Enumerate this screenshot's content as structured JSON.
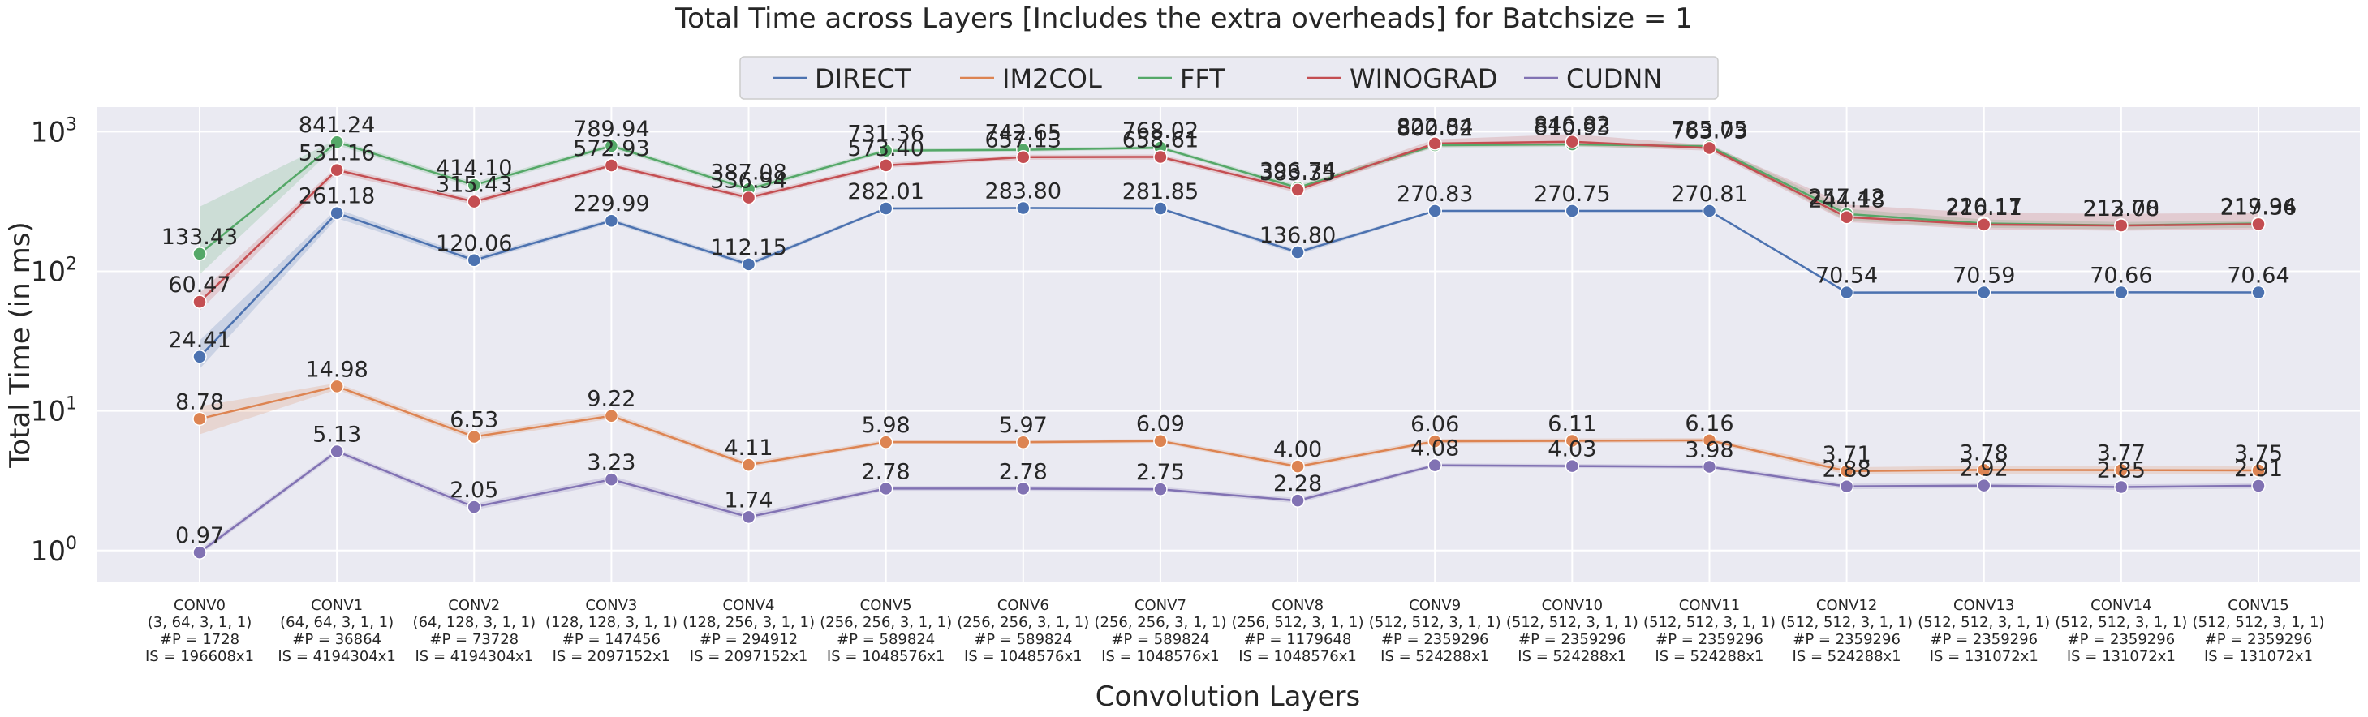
{
  "chart_data": {
    "type": "line",
    "title": "Total Time across Layers [Includes the extra overheads]  for Batchsize = 1",
    "xlabel": "Convolution Layers",
    "ylabel": "Total Time (in ms)",
    "yscale": "log",
    "ylim": [
      0.6,
      1500
    ],
    "y_ticks": [
      {
        "value": 1,
        "base": "10",
        "exp": "0"
      },
      {
        "value": 10,
        "base": "10",
        "exp": "1"
      },
      {
        "value": 100,
        "base": "10",
        "exp": "2"
      },
      {
        "value": 1000,
        "base": "10",
        "exp": "3"
      }
    ],
    "grid": true,
    "legend_position": "top-center",
    "categories": [
      {
        "name": "CONV0",
        "shape": "(3, 64, 3, 1, 1)",
        "params": "#P = 1728",
        "input": "IS = 196608x1"
      },
      {
        "name": "CONV1",
        "shape": "(64, 64, 3, 1, 1)",
        "params": "#P = 36864",
        "input": "IS = 4194304x1"
      },
      {
        "name": "CONV2",
        "shape": "(64, 128, 3, 1, 1)",
        "params": "#P = 73728",
        "input": "IS = 4194304x1"
      },
      {
        "name": "CONV3",
        "shape": "(128, 128, 3, 1, 1)",
        "params": "#P = 147456",
        "input": "IS = 2097152x1"
      },
      {
        "name": "CONV4",
        "shape": "(128, 256, 3, 1, 1)",
        "params": "#P = 294912",
        "input": "IS = 2097152x1"
      },
      {
        "name": "CONV5",
        "shape": "(256, 256, 3, 1, 1)",
        "params": "#P = 589824",
        "input": "IS = 1048576x1"
      },
      {
        "name": "CONV6",
        "shape": "(256, 256, 3, 1, 1)",
        "params": "#P = 589824",
        "input": "IS = 1048576x1"
      },
      {
        "name": "CONV7",
        "shape": "(256, 256, 3, 1, 1)",
        "params": "#P = 589824",
        "input": "IS = 1048576x1"
      },
      {
        "name": "CONV8",
        "shape": "(256, 512, 3, 1, 1)",
        "params": "#P = 1179648",
        "input": "IS = 1048576x1"
      },
      {
        "name": "CONV9",
        "shape": "(512, 512, 3, 1, 1)",
        "params": "#P = 2359296",
        "input": "IS = 524288x1"
      },
      {
        "name": "CONV10",
        "shape": "(512, 512, 3, 1, 1)",
        "params": "#P = 2359296",
        "input": "IS = 524288x1"
      },
      {
        "name": "CONV11",
        "shape": "(512, 512, 3, 1, 1)",
        "params": "#P = 2359296",
        "input": "IS = 524288x1"
      },
      {
        "name": "CONV12",
        "shape": "(512, 512, 3, 1, 1)",
        "params": "#P = 2359296",
        "input": "IS = 524288x1"
      },
      {
        "name": "CONV13",
        "shape": "(512, 512, 3, 1, 1)",
        "params": "#P = 2359296",
        "input": "IS = 131072x1"
      },
      {
        "name": "CONV14",
        "shape": "(512, 512, 3, 1, 1)",
        "params": "#P = 2359296",
        "input": "IS = 131072x1"
      },
      {
        "name": "CONV15",
        "shape": "(512, 512, 3, 1, 1)",
        "params": "#P = 2359296",
        "input": "IS = 131072x1"
      }
    ],
    "series": [
      {
        "name": "DIRECT",
        "color": "#4c72b0",
        "values": [
          24.41,
          261.18,
          120.06,
          229.99,
          112.15,
          282.01,
          283.8,
          281.85,
          136.8,
          270.83,
          270.75,
          270.81,
          70.54,
          70.59,
          70.66,
          70.64
        ],
        "labels": [
          "24.41",
          "261.18",
          "120.06",
          "229.99",
          "112.15",
          "282.01",
          "283.80",
          "281.85",
          "136.80",
          "270.83",
          "270.75",
          "270.81",
          "70.54",
          "70.59",
          "70.66",
          "70.64"
        ],
        "band_low": [
          20,
          240,
          115,
          222,
          108,
          276,
          279,
          277,
          131,
          266,
          266,
          266,
          69.5,
          69.6,
          69.7,
          69.7
        ],
        "band_high": [
          32,
          280,
          126,
          238,
          117,
          288,
          289,
          287,
          142,
          276,
          276,
          276,
          71.5,
          71.5,
          71.6,
          71.6
        ]
      },
      {
        "name": "IM2COL",
        "color": "#dd8452",
        "values": [
          8.78,
          14.98,
          6.53,
          9.22,
          4.11,
          5.98,
          5.97,
          6.09,
          4.0,
          6.06,
          6.11,
          6.16,
          3.71,
          3.78,
          3.77,
          3.75
        ],
        "labels": [
          "8.78",
          "14.98",
          "6.53",
          "9.22",
          "4.11",
          "5.98",
          "5.97",
          "6.09",
          "4.00",
          "6.06",
          "6.11",
          "6.16",
          "3.71",
          "3.78",
          "3.77",
          "3.75"
        ],
        "band_low": [
          6.8,
          14.2,
          6.2,
          8.8,
          3.95,
          5.8,
          5.8,
          5.9,
          3.85,
          5.85,
          5.9,
          5.95,
          3.5,
          3.55,
          3.55,
          3.55
        ],
        "band_high": [
          10.8,
          15.8,
          6.9,
          9.7,
          4.3,
          6.2,
          6.15,
          6.3,
          4.2,
          6.3,
          6.35,
          6.4,
          3.95,
          4.05,
          4.05,
          4.0
        ]
      },
      {
        "name": "FFT",
        "color": "#55a868",
        "values": [
          133.43,
          841.24,
          414.1,
          789.94,
          387.08,
          731.36,
          742.65,
          768.02,
          396.74,
          800.02,
          810.93,
          785.05,
          257.42,
          220.17,
          213.08,
          219.94
        ],
        "labels": [
          "133.43",
          "841.24",
          "414.10",
          "789.94",
          "387.08",
          "731.36",
          "742.65",
          "768.02",
          "396.74",
          "800.02",
          "810.93",
          "785.05",
          "257.42",
          "220.17",
          "213.08",
          "219.94"
        ],
        "band_low": [
          95,
          800,
          395,
          760,
          370,
          710,
          720,
          745,
          380,
          770,
          780,
          755,
          230,
          205,
          200,
          205
        ],
        "band_high": [
          290,
          880,
          435,
          820,
          405,
          755,
          765,
          790,
          415,
          830,
          840,
          815,
          280,
          235,
          225,
          232
        ]
      },
      {
        "name": "WINOGRAD",
        "color": "#c44e52",
        "values": [
          60.47,
          531.16,
          315.43,
          572.93,
          336.94,
          573.4,
          657.13,
          658.61,
          383.35,
          822.84,
          846.82,
          763.73,
          244.18,
          216.11,
          212.7,
          217.36
        ],
        "labels": [
          "60.47",
          "531.16",
          "315.43",
          "572.93",
          "336.94",
          "573.40",
          "657.13",
          "658.61",
          "383.35",
          "822.84",
          "846.82",
          "763.73",
          "244.18",
          "216.11",
          "212.70",
          "217.36"
        ],
        "band_low": [
          52,
          500,
          300,
          550,
          322,
          550,
          630,
          632,
          365,
          780,
          790,
          730,
          225,
          200,
          195,
          200
        ],
        "band_high": [
          70,
          560,
          330,
          600,
          352,
          598,
          684,
          686,
          402,
          880,
          960,
          800,
          300,
          262,
          258,
          262
        ]
      },
      {
        "name": "CUDNN",
        "color": "#8172b3",
        "values": [
          0.97,
          5.13,
          2.05,
          3.23,
          1.74,
          2.78,
          2.78,
          2.75,
          2.28,
          4.08,
          4.03,
          3.98,
          2.88,
          2.92,
          2.85,
          2.91
        ],
        "labels": [
          "0.97",
          "5.13",
          "2.05",
          "3.23",
          "1.74",
          "2.78",
          "2.78",
          "2.75",
          "2.28",
          "4.08",
          "4.03",
          "3.98",
          "2.88",
          "2.92",
          "2.85",
          "2.91"
        ],
        "band_low": [
          0.93,
          4.9,
          1.95,
          3.05,
          1.65,
          2.68,
          2.68,
          2.65,
          2.18,
          3.95,
          3.9,
          3.85,
          2.75,
          2.8,
          2.72,
          2.78
        ],
        "band_high": [
          1.02,
          5.35,
          2.16,
          3.42,
          1.84,
          2.9,
          2.9,
          2.86,
          2.38,
          4.22,
          4.17,
          4.12,
          3.02,
          3.05,
          2.98,
          3.04
        ]
      }
    ]
  }
}
